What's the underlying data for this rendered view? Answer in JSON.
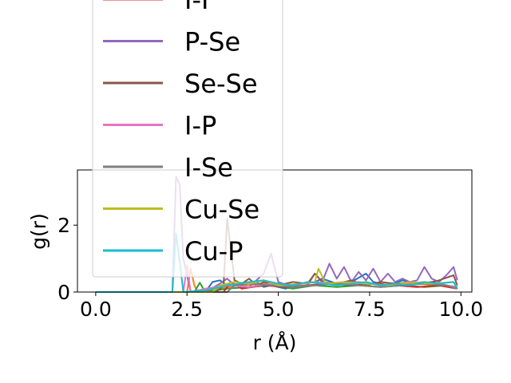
{
  "chart_data": {
    "type": "line",
    "title": "",
    "xlabel": "r (Å)",
    "ylabel": "g(r)",
    "xlim": [
      -0.5,
      10.3
    ],
    "ylim": [
      0,
      3.65
    ],
    "xticks": [
      "0.0",
      "2.5",
      "5.0",
      "7.5",
      "10.0"
    ],
    "xtick_values": [
      0,
      2.5,
      5,
      7.5,
      10
    ],
    "yticks": [
      "0",
      "2"
    ],
    "ytick_values": [
      0,
      2
    ],
    "grid": false,
    "legend_placement": "top-left (overflowing above axes)",
    "legend_visible_entries": [
      "I-I",
      "P-Se",
      "Se-Se",
      "I-P",
      "I-Se",
      "Cu-Se",
      "Cu-P"
    ],
    "series": [
      {
        "name": "",
        "color": "#1f77b4",
        "x": [
          0,
          2.1,
          2.2,
          3.0,
          3.2,
          3.4,
          3.6,
          4.0,
          4.4,
          4.6,
          4.8,
          5.2,
          5.6,
          6.0,
          6.2,
          6.6,
          7.0,
          7.4,
          7.6,
          8.0,
          8.4,
          8.8,
          9.2,
          9.6,
          9.9
        ],
        "y": [
          0,
          0,
          0,
          0,
          0.3,
          0.35,
          0.2,
          0.25,
          0.3,
          0.15,
          0.2,
          0.1,
          0.25,
          0.3,
          0.4,
          0.25,
          0.3,
          0.55,
          0.3,
          0.2,
          0.35,
          0.25,
          0.3,
          0.2,
          0.15
        ]
      },
      {
        "name": "",
        "color": "#ff7f0e",
        "x": [
          0,
          2.5,
          2.6,
          2.7,
          2.8,
          3.2,
          3.6,
          4.0,
          4.6,
          5.2,
          5.8,
          6.4,
          7.0,
          7.6,
          8.2,
          8.8,
          9.4,
          9.9
        ],
        "y": [
          0,
          0,
          0.7,
          0.2,
          0,
          0.05,
          0.15,
          0.2,
          0.25,
          0.15,
          0.2,
          0.25,
          0.2,
          0.25,
          0.2,
          0.25,
          0.2,
          0.1
        ]
      },
      {
        "name": "",
        "color": "#2ca02c",
        "x": [
          0,
          2.7,
          2.85,
          3.0,
          3.6,
          4.2,
          4.8,
          5.4,
          6.0,
          6.6,
          7.2,
          7.8,
          8.4,
          9.0,
          9.6,
          9.9
        ],
        "y": [
          0,
          0,
          0.28,
          0,
          0.1,
          0.15,
          0.2,
          0.1,
          0.2,
          0.15,
          0.2,
          0.15,
          0.2,
          0.15,
          0.2,
          0.1
        ]
      },
      {
        "name": "I-I",
        "color": "#d62728",
        "x": [
          0,
          3.5,
          3.7,
          4.0,
          4.6,
          5.2,
          5.8,
          6.4,
          7.0,
          7.6,
          8.2,
          8.8,
          9.4,
          9.9
        ],
        "y": [
          0,
          0,
          0.3,
          0.1,
          0.2,
          0.15,
          0.2,
          0.25,
          0.2,
          0.25,
          0.2,
          0.15,
          0.2,
          0.1
        ]
      },
      {
        "name": "P-Se",
        "color": "#9467bd",
        "x": [
          0,
          2.1,
          2.2,
          2.3,
          2.4,
          2.6,
          3.0,
          3.4,
          3.6,
          3.8,
          4.2,
          4.6,
          4.8,
          5.0,
          5.4,
          5.8,
          6.0,
          6.2,
          6.4,
          6.6,
          6.8,
          7.0,
          7.2,
          7.4,
          7.6,
          7.8,
          8.0,
          8.2,
          8.4,
          8.6,
          8.8,
          9.0,
          9.2,
          9.4,
          9.6,
          9.8,
          9.9
        ],
        "y": [
          0,
          0,
          3.45,
          3.2,
          1.0,
          0,
          0,
          0.25,
          0.4,
          0.2,
          0.15,
          0.55,
          1.15,
          0.3,
          0.15,
          0.2,
          0.55,
          0.3,
          0.85,
          0.4,
          0.75,
          0.3,
          0.6,
          0.35,
          0.7,
          0.3,
          0.55,
          0.3,
          0.4,
          0.3,
          0.35,
          0.75,
          0.4,
          0.3,
          0.5,
          0.75,
          0.35
        ]
      },
      {
        "name": "Se-Se",
        "color": "#8c564b",
        "x": [
          0,
          3.3,
          3.5,
          3.6,
          3.8,
          4.0,
          4.2,
          4.4,
          4.6,
          5.0,
          5.4,
          5.8,
          6.0,
          6.2,
          6.6,
          7.0,
          7.4,
          7.8,
          8.2,
          8.6,
          9.0,
          9.4,
          9.8,
          9.9
        ],
        "y": [
          0,
          0,
          0.2,
          2.2,
          0.35,
          0.25,
          0.4,
          0.2,
          0.3,
          0.2,
          0.3,
          0.25,
          0.55,
          0.3,
          0.25,
          0.35,
          0.2,
          0.3,
          0.25,
          0.3,
          0.25,
          0.35,
          0.5,
          0.2
        ]
      },
      {
        "name": "I-P",
        "color": "#e377c2",
        "x": [
          0,
          2.4,
          2.5,
          2.6,
          3.0,
          3.6,
          4.2,
          4.8,
          5.4,
          6.0,
          6.6,
          7.2,
          7.8,
          8.4,
          9.0,
          9.6,
          9.9
        ],
        "y": [
          0,
          0,
          0.8,
          0,
          0.1,
          0.2,
          0.15,
          0.25,
          0.2,
          0.3,
          0.25,
          0.3,
          0.2,
          0.25,
          0.3,
          0.2,
          0.15
        ]
      },
      {
        "name": "I-Se",
        "color": "#7f7f7f",
        "x": [
          0,
          3.6,
          3.8,
          4.2,
          4.8,
          5.4,
          6.0,
          6.6,
          7.2,
          7.8,
          8.4,
          9.0,
          9.6,
          9.9
        ],
        "y": [
          0,
          0,
          0.2,
          0.25,
          0.2,
          0.15,
          0.2,
          0.25,
          0.2,
          0.15,
          0.2,
          0.25,
          0.2,
          0.1
        ]
      },
      {
        "name": "Cu-Se",
        "color": "#bcbd22",
        "x": [
          0,
          3.2,
          3.4,
          3.8,
          4.2,
          4.6,
          5.0,
          5.6,
          6.0,
          6.1,
          6.3,
          6.8,
          7.4,
          8.0,
          8.6,
          9.2,
          9.8,
          9.9
        ],
        "y": [
          0,
          0,
          0.2,
          0.3,
          0.25,
          0.35,
          0.2,
          0.25,
          0.3,
          0.7,
          0.25,
          0.3,
          0.25,
          0.2,
          0.3,
          0.25,
          0.3,
          0.15
        ]
      },
      {
        "name": "Cu-P",
        "color": "#17becf",
        "x": [
          0,
          2.1,
          2.2,
          2.3,
          2.4,
          3.0,
          3.6,
          4.2,
          4.6,
          5.0,
          5.4,
          5.8,
          6.2,
          6.6,
          7.0,
          7.4,
          7.8,
          8.2,
          8.6,
          9.0,
          9.4,
          9.8,
          9.9
        ],
        "y": [
          0,
          0,
          1.75,
          0.9,
          0,
          0.05,
          0.2,
          0.3,
          0.35,
          0.25,
          0.2,
          0.3,
          0.25,
          0.2,
          0.25,
          0.3,
          0.2,
          0.25,
          0.2,
          0.3,
          0.25,
          0.3,
          0.1
        ]
      }
    ]
  }
}
